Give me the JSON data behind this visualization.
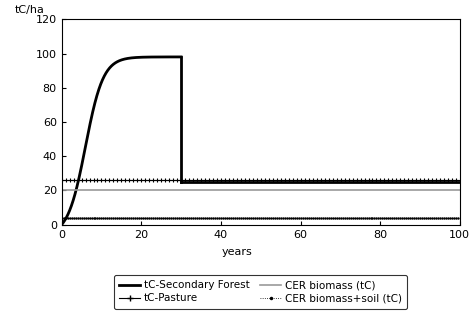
{
  "ylabel": "tC/ha",
  "xlabel": "years",
  "xlim": [
    0,
    100
  ],
  "ylim": [
    0,
    120
  ],
  "xticks": [
    0,
    20,
    40,
    60,
    80,
    100
  ],
  "yticks": [
    0,
    20,
    40,
    60,
    80,
    100,
    120
  ],
  "project_end": 30,
  "forest_peak": 98,
  "forest_post": 25,
  "pasture_level": 26,
  "cer_biomass_level": 20,
  "cer_biomass_soil_level": 4,
  "forest_k": 0.45,
  "forest_t0": 6,
  "legend_entries": [
    "tC-Secondary Forest",
    "tC-Pasture",
    "CER biomass (tC)",
    "CER biomass+soil (tC)"
  ],
  "background_color": "#ffffff",
  "line_color": "#000000",
  "gray_color": "#999999"
}
